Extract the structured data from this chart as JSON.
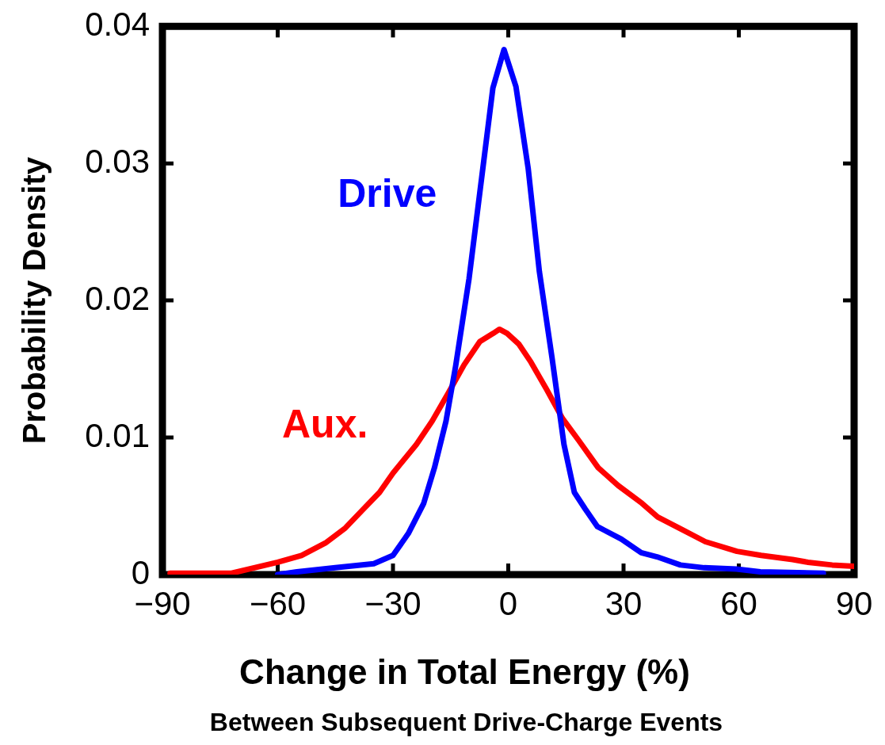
{
  "chart_data": {
    "type": "line",
    "xlabel": "Change in Total Energy (%)",
    "ylabel": "Probability Density",
    "annotations": [
      "Between Subsequent Drive-Charge Events"
    ],
    "xlim": [
      -90,
      90
    ],
    "xticks": [
      {
        "value": -90,
        "label": "−90"
      },
      {
        "value": -60,
        "label": "−60"
      },
      {
        "value": -30,
        "label": "−30"
      },
      0,
      30,
      60,
      90
    ],
    "ylim": [
      0,
      0.04
    ],
    "yticks": [
      0,
      0.01,
      0.02,
      0.03,
      0.04
    ],
    "grid": false,
    "legend": false,
    "marker": "none",
    "line_style": "solid",
    "series": [
      {
        "name": "Drive",
        "color": "#0000ff",
        "x": [
          -60,
          -55,
          -45,
          -35,
          -30,
          -26,
          -22,
          -19.2,
          -16.2,
          -13.7,
          -10.2,
          -6.9,
          -4,
          -1.1,
          2,
          5.2,
          8.1,
          11.4,
          14.5,
          17.2,
          20,
          23.2,
          29.4,
          34.6,
          38.7,
          44.8,
          51,
          59.4,
          65.6,
          82
        ],
        "values": [
          0,
          0.0002,
          0.0005,
          0.0008,
          0.0014,
          0.003,
          0.0052,
          0.0078,
          0.0112,
          0.0152,
          0.0216,
          0.029,
          0.0355,
          0.0383,
          0.0356,
          0.0296,
          0.0221,
          0.0158,
          0.0095,
          0.006,
          0.0048,
          0.0035,
          0.0026,
          0.0016,
          0.0013,
          0.0007,
          0.0005,
          0.0004,
          0.0002,
          0.0001
        ]
      },
      {
        "name": "Aux.",
        "color": "#ff0000",
        "x": [
          -88,
          -72,
          -60,
          -53.8,
          -47.6,
          -42.4,
          -38.3,
          -33.5,
          -30,
          -23.9,
          -19.8,
          -15.7,
          -11.5,
          -7.4,
          -3.9,
          -2.3,
          -0.3,
          2.8,
          5.9,
          10,
          14.1,
          18.3,
          23.4,
          28.6,
          34.8,
          38.9,
          45.1,
          51.3,
          59.5,
          65.8,
          74,
          78,
          84.3,
          90
        ],
        "values": [
          0.0001,
          0.0001,
          0.0009,
          0.0014,
          0.0023,
          0.0034,
          0.0046,
          0.006,
          0.0074,
          0.0095,
          0.0112,
          0.0132,
          0.0153,
          0.017,
          0.0176,
          0.0179,
          0.0176,
          0.0168,
          0.0155,
          0.0135,
          0.0114,
          0.0098,
          0.0078,
          0.0065,
          0.0052,
          0.0042,
          0.0033,
          0.0024,
          0.0017,
          0.0014,
          0.0011,
          0.0009,
          0.0007,
          0.0006
        ]
      }
    ]
  }
}
